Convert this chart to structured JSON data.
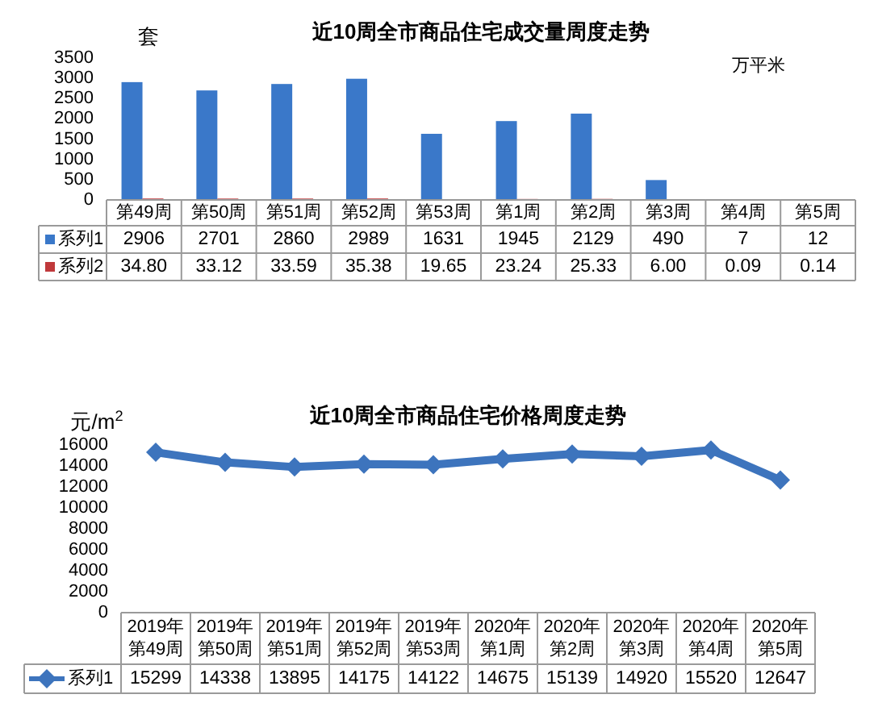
{
  "chart_data": [
    {
      "type": "bar",
      "title": "近10周全市商品住宅成交量周度走势",
      "ylabel": "套",
      "y2label": "万平米",
      "categories": [
        "第49周",
        "第50周",
        "第51周",
        "第52周",
        "第53周",
        "第1周",
        "第2周",
        "第3周",
        "第4周",
        "第5周"
      ],
      "series": [
        {
          "name": "系列1",
          "color": "#3a78c9",
          "values": [
            2906,
            2701,
            2860,
            2989,
            1631,
            1945,
            2129,
            490,
            7,
            12
          ]
        },
        {
          "name": "系列2",
          "color": "#c0393b",
          "values": [
            34.8,
            33.12,
            33.59,
            35.38,
            19.65,
            23.24,
            25.33,
            6.0,
            0.09,
            0.14
          ],
          "value_labels": [
            "34.80",
            "33.12",
            "33.59",
            "35.38",
            "19.65",
            "23.24",
            "25.33",
            "6.00",
            "0.09",
            "0.14"
          ]
        }
      ],
      "ylim": [
        0,
        3500
      ],
      "yticks": [
        0,
        500,
        1000,
        1500,
        2000,
        2500,
        3000,
        3500
      ],
      "data_labels": true,
      "legend": "bottom"
    },
    {
      "type": "line",
      "title": "近10周全市商品住宅价格周度走势",
      "ylabel": "元/m$^{2}$",
      "categories": [
        "2019年第49周",
        "2019年第50周",
        "2019年第51周",
        "2019年第52周",
        "2019年第53周",
        "2020年第1周",
        "2020年第2周",
        "2020年第3周",
        "2020年第4周",
        "2020年第5周"
      ],
      "series": [
        {
          "name": "系列1",
          "color": "#3d74bd",
          "values": [
            15299,
            14338,
            13895,
            14175,
            14122,
            14675,
            15139,
            14920,
            15520,
            12647
          ]
        }
      ],
      "ylim": [
        0,
        16000
      ],
      "yticks": [
        0,
        2000,
        4000,
        6000,
        8000,
        10000,
        12000,
        14000,
        16000
      ],
      "marker": "diamond",
      "line_style": "solid",
      "data_labels": true,
      "legend": "bottom"
    }
  ]
}
